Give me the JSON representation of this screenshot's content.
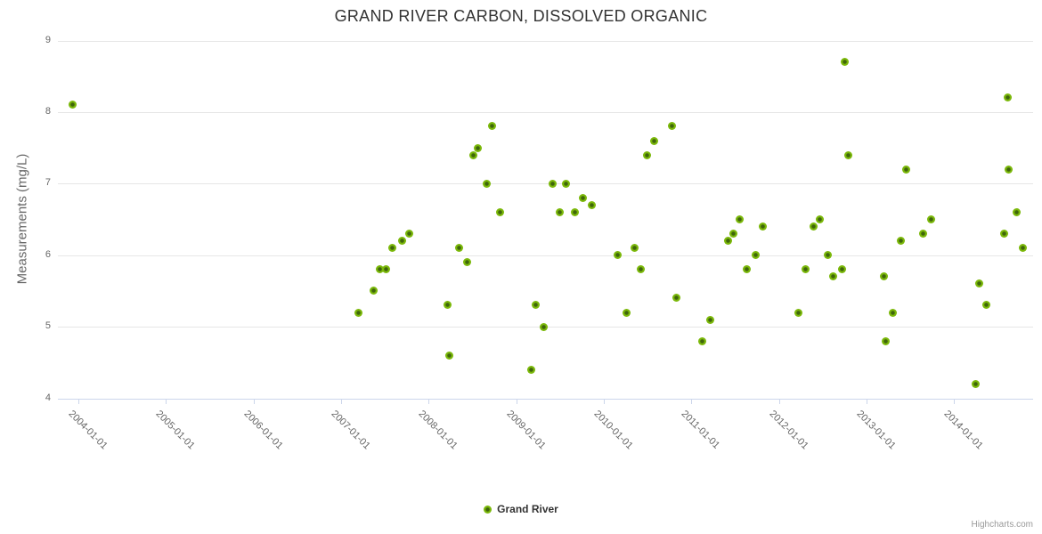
{
  "credits": "Highcharts.com",
  "colors": {
    "title": "#333333",
    "axis_label": "#666666",
    "grid": "#e6e6e6",
    "axis_line": "#ccd6eb",
    "background": "#ffffff",
    "series_fill": "#7bb80a",
    "series_core": "#3f660b"
  },
  "chart_data": {
    "type": "scatter",
    "title": "GRAND RIVER CARBON, DISSOLVED ORGANIC",
    "xlabel": "",
    "ylabel": "Measurements (mg/L)",
    "ylim": [
      4,
      9
    ],
    "y_ticks": [
      9,
      8,
      7,
      6,
      5,
      4
    ],
    "x_ticks": [
      "2004-01-01",
      "2005-01-01",
      "2006-01-01",
      "2007-01-01",
      "2008-01-01",
      "2009-01-01",
      "2010-01-01",
      "2011-01-01",
      "2012-01-01",
      "2013-01-01",
      "2014-01-01"
    ],
    "grid": true,
    "legend_position": "bottom-center",
    "series": [
      {
        "name": "Grand River",
        "color": "#7bb80a",
        "points": [
          {
            "date": "2003-12-09",
            "value": 8.1
          },
          {
            "date": "2007-03-13",
            "value": 5.2
          },
          {
            "date": "2007-05-15",
            "value": 5.5
          },
          {
            "date": "2007-06-10",
            "value": 5.8
          },
          {
            "date": "2007-07-06",
            "value": 5.8
          },
          {
            "date": "2007-08-02",
            "value": 6.1
          },
          {
            "date": "2007-09-12",
            "value": 6.2
          },
          {
            "date": "2007-10-10",
            "value": 6.3
          },
          {
            "date": "2008-03-20",
            "value": 5.3
          },
          {
            "date": "2008-03-25",
            "value": 4.6
          },
          {
            "date": "2008-05-08",
            "value": 6.1
          },
          {
            "date": "2008-06-10",
            "value": 5.9
          },
          {
            "date": "2008-07-04",
            "value": 7.4
          },
          {
            "date": "2008-07-25",
            "value": 7.5
          },
          {
            "date": "2008-08-29",
            "value": 7.0
          },
          {
            "date": "2008-09-20",
            "value": 7.8
          },
          {
            "date": "2008-10-23",
            "value": 6.6
          },
          {
            "date": "2009-03-01",
            "value": 4.4
          },
          {
            "date": "2009-03-20",
            "value": 5.3
          },
          {
            "date": "2009-04-23",
            "value": 5.0
          },
          {
            "date": "2009-05-30",
            "value": 7.0
          },
          {
            "date": "2009-07-01",
            "value": 6.6
          },
          {
            "date": "2009-07-25",
            "value": 7.0
          },
          {
            "date": "2009-09-02",
            "value": 6.6
          },
          {
            "date": "2009-10-05",
            "value": 6.8
          },
          {
            "date": "2009-11-11",
            "value": 6.7
          },
          {
            "date": "2010-02-27",
            "value": 6.0
          },
          {
            "date": "2010-04-05",
            "value": 5.2
          },
          {
            "date": "2010-05-06",
            "value": 6.1
          },
          {
            "date": "2010-06-02",
            "value": 5.8
          },
          {
            "date": "2010-06-30",
            "value": 7.4
          },
          {
            "date": "2010-07-30",
            "value": 7.6
          },
          {
            "date": "2010-10-12",
            "value": 7.8
          },
          {
            "date": "2010-11-01",
            "value": 5.4
          },
          {
            "date": "2011-02-16",
            "value": 4.8
          },
          {
            "date": "2011-03-20",
            "value": 5.1
          },
          {
            "date": "2011-05-31",
            "value": 6.2
          },
          {
            "date": "2011-06-24",
            "value": 6.3
          },
          {
            "date": "2011-07-21",
            "value": 6.5
          },
          {
            "date": "2011-08-20",
            "value": 5.8
          },
          {
            "date": "2011-09-26",
            "value": 6.0
          },
          {
            "date": "2011-10-26",
            "value": 6.4
          },
          {
            "date": "2012-03-23",
            "value": 5.2
          },
          {
            "date": "2012-04-21",
            "value": 5.8
          },
          {
            "date": "2012-05-23",
            "value": 6.4
          },
          {
            "date": "2012-06-20",
            "value": 6.5
          },
          {
            "date": "2012-07-21",
            "value": 6.0
          },
          {
            "date": "2012-08-15",
            "value": 5.7
          },
          {
            "date": "2012-09-21",
            "value": 5.8
          },
          {
            "date": "2012-10-03",
            "value": 8.7
          },
          {
            "date": "2012-10-18",
            "value": 7.4
          },
          {
            "date": "2013-03-12",
            "value": 5.7
          },
          {
            "date": "2013-03-21",
            "value": 4.8
          },
          {
            "date": "2013-04-19",
            "value": 5.2
          },
          {
            "date": "2013-05-23",
            "value": 6.2
          },
          {
            "date": "2013-06-13",
            "value": 7.2
          },
          {
            "date": "2013-08-22",
            "value": 6.3
          },
          {
            "date": "2013-09-28",
            "value": 6.5
          },
          {
            "date": "2014-03-30",
            "value": 4.2
          },
          {
            "date": "2014-04-14",
            "value": 5.6
          },
          {
            "date": "2014-05-15",
            "value": 5.3
          },
          {
            "date": "2014-07-27",
            "value": 6.3
          },
          {
            "date": "2014-08-10",
            "value": 8.2
          },
          {
            "date": "2014-08-14",
            "value": 7.2
          },
          {
            "date": "2014-09-19",
            "value": 6.6
          },
          {
            "date": "2014-10-15",
            "value": 6.1
          }
        ]
      }
    ]
  }
}
